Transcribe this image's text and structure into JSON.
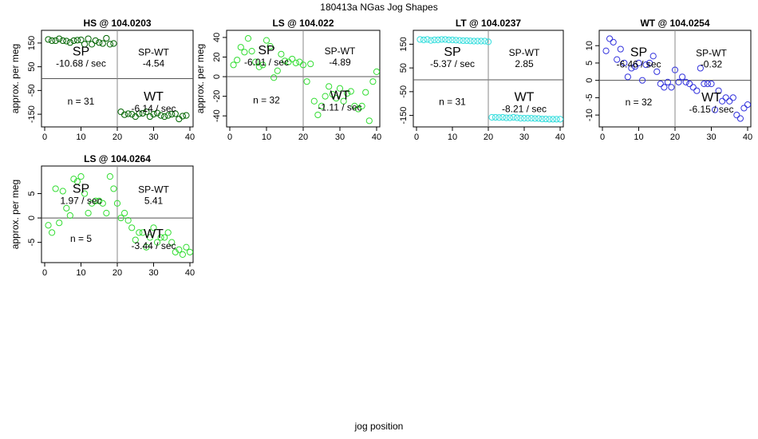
{
  "figure": {
    "title": "180413a   NGas Jog Shapes",
    "xlabel": "jog position"
  },
  "chart_data": [
    {
      "type": "scatter",
      "title": "HS @ 104.0203",
      "ylabel": "approx. per meg",
      "xlim": [
        0,
        40
      ],
      "ylim": [
        -190,
        190
      ],
      "xticks": [
        0,
        10,
        20,
        30,
        40
      ],
      "yticks": [
        -150,
        -50,
        50,
        150
      ],
      "color": "#006400",
      "split_x": 20,
      "annotations": {
        "sp": "SP",
        "sp_rate": "-10.68 / sec",
        "spwt": "SP-WT",
        "spwt_value": "-4.54",
        "n": "n = 31",
        "wt": "WT",
        "wt_rate": "-6.14 / sec"
      },
      "points": [
        [
          1,
          165
        ],
        [
          2,
          160
        ],
        [
          3,
          160
        ],
        [
          4,
          168
        ],
        [
          5,
          160
        ],
        [
          6,
          158
        ],
        [
          7,
          152
        ],
        [
          8,
          160
        ],
        [
          9,
          162
        ],
        [
          10,
          163
        ],
        [
          11,
          145
        ],
        [
          12,
          168
        ],
        [
          13,
          145
        ],
        [
          14,
          160
        ],
        [
          15,
          152
        ],
        [
          16,
          148
        ],
        [
          17,
          170
        ],
        [
          18,
          145
        ],
        [
          19,
          148
        ],
        [
          21,
          -140
        ],
        [
          22,
          -152
        ],
        [
          23,
          -148
        ],
        [
          24,
          -150
        ],
        [
          25,
          -160
        ],
        [
          26,
          -148
        ],
        [
          27,
          -146
        ],
        [
          28,
          -140
        ],
        [
          29,
          -160
        ],
        [
          30,
          -150
        ],
        [
          31,
          -145
        ],
        [
          32,
          -155
        ],
        [
          33,
          -160
        ],
        [
          34,
          -155
        ],
        [
          35,
          -150
        ],
        [
          36,
          -148
        ],
        [
          37,
          -170
        ],
        [
          38,
          -158
        ],
        [
          39,
          -155
        ]
      ]
    },
    {
      "type": "scatter",
      "title": "LS @ 104.022",
      "ylabel": "approx. per meg",
      "xlim": [
        0,
        40
      ],
      "ylim": [
        -48,
        44
      ],
      "xticks": [
        0,
        10,
        20,
        30,
        40
      ],
      "yticks": [
        -40,
        -20,
        0,
        20,
        40
      ],
      "color": "#33dd33",
      "split_x": 20,
      "annotations": {
        "sp": "SP",
        "sp_rate": "-6.01 / sec",
        "spwt": "SP-WT",
        "spwt_value": "-4.89",
        "n": "n = 32",
        "wt": "WT",
        "wt_rate": "-1.11 / sec"
      },
      "points": [
        [
          1,
          12
        ],
        [
          2,
          17
        ],
        [
          3,
          30
        ],
        [
          4,
          25
        ],
        [
          5,
          39
        ],
        [
          6,
          26
        ],
        [
          7,
          15
        ],
        [
          8,
          10
        ],
        [
          9,
          12
        ],
        [
          10,
          37
        ],
        [
          11,
          31
        ],
        [
          12,
          -1
        ],
        [
          13,
          6
        ],
        [
          14,
          23
        ],
        [
          15,
          16
        ],
        [
          16,
          15
        ],
        [
          17,
          18
        ],
        [
          18,
          14
        ],
        [
          19,
          15
        ],
        [
          20,
          12
        ],
        [
          21,
          -5
        ],
        [
          22,
          13
        ],
        [
          23,
          -25
        ],
        [
          24,
          -39
        ],
        [
          25,
          -30
        ],
        [
          26,
          -20
        ],
        [
          27,
          -10
        ],
        [
          28,
          -18
        ],
        [
          29,
          -22
        ],
        [
          30,
          -12
        ],
        [
          31,
          -25
        ],
        [
          32,
          -17
        ],
        [
          33,
          -15
        ],
        [
          34,
          -30
        ],
        [
          35,
          -33
        ],
        [
          36,
          -30
        ],
        [
          37,
          -16
        ],
        [
          38,
          -45
        ],
        [
          39,
          -5
        ],
        [
          40,
          5
        ]
      ]
    },
    {
      "type": "scatter",
      "title": "LT @ 104.0237",
      "ylabel": "",
      "xlim": [
        0,
        40
      ],
      "ylim": [
        -185,
        195
      ],
      "xticks": [
        0,
        10,
        20,
        30,
        40
      ],
      "yticks": [
        -150,
        -50,
        50,
        150
      ],
      "color": "#33dddd",
      "split_x": 20,
      "annotations": {
        "sp": "SP",
        "sp_rate": "-5.37 / sec",
        "spwt": "SP-WT",
        "spwt_value": "2.85",
        "n": "n = 31",
        "wt": "WT",
        "wt_rate": "-8.21 / sec"
      },
      "points": [
        [
          1,
          170
        ],
        [
          2,
          168
        ],
        [
          3,
          170
        ],
        [
          4,
          166
        ],
        [
          5,
          168
        ],
        [
          6,
          168
        ],
        [
          7,
          170
        ],
        [
          8,
          170
        ],
        [
          9,
          168
        ],
        [
          10,
          168
        ],
        [
          11,
          167
        ],
        [
          12,
          166
        ],
        [
          13,
          165
        ],
        [
          14,
          165
        ],
        [
          15,
          164
        ],
        [
          16,
          163
        ],
        [
          17,
          163
        ],
        [
          18,
          163
        ],
        [
          19,
          163
        ],
        [
          20,
          160
        ],
        [
          21,
          -158
        ],
        [
          22,
          -158
        ],
        [
          23,
          -159
        ],
        [
          24,
          -158
        ],
        [
          25,
          -160
        ],
        [
          26,
          -160
        ],
        [
          27,
          -158
        ],
        [
          28,
          -160
        ],
        [
          29,
          -162
        ],
        [
          30,
          -162
        ],
        [
          31,
          -162
        ],
        [
          32,
          -162
        ],
        [
          33,
          -163
        ],
        [
          34,
          -163
        ],
        [
          35,
          -165
        ],
        [
          36,
          -165
        ],
        [
          37,
          -166
        ],
        [
          38,
          -166
        ],
        [
          39,
          -166
        ],
        [
          40,
          -166
        ]
      ]
    },
    {
      "type": "scatter",
      "title": "WT @ 104.0254",
      "ylabel": "",
      "xlim": [
        0,
        40
      ],
      "ylim": [
        -12.5,
        13.5
      ],
      "xticks": [
        0,
        10,
        20,
        30,
        40
      ],
      "yticks": [
        -10,
        -5,
        0,
        5,
        10
      ],
      "color": "#3333dd",
      "split_x": 20,
      "annotations": {
        "sp": "SP",
        "sp_rate": "-6.46 / sec",
        "spwt": "SP-WT",
        "spwt_value": "-0.32",
        "n": "n = 32",
        "wt": "WT",
        "wt_rate": "-6.15 / sec"
      },
      "points": [
        [
          1,
          8.5
        ],
        [
          2,
          12
        ],
        [
          3,
          11
        ],
        [
          4,
          6
        ],
        [
          5,
          9
        ],
        [
          6,
          5
        ],
        [
          7,
          1
        ],
        [
          8,
          3.5
        ],
        [
          9,
          4
        ],
        [
          10,
          5
        ],
        [
          11,
          0
        ],
        [
          12,
          4.5
        ],
        [
          13,
          5
        ],
        [
          14,
          7
        ],
        [
          15,
          2.5
        ],
        [
          16,
          -1
        ],
        [
          17,
          -2
        ],
        [
          18,
          -0.5
        ],
        [
          19,
          -2
        ],
        [
          20,
          3
        ],
        [
          21,
          -0.5
        ],
        [
          22,
          1
        ],
        [
          23,
          -0.5
        ],
        [
          24,
          -1
        ],
        [
          25,
          -2
        ],
        [
          26,
          -3
        ],
        [
          27,
          3.5
        ],
        [
          28,
          -1
        ],
        [
          29,
          -1
        ],
        [
          30,
          -1
        ],
        [
          31,
          -8.5
        ],
        [
          32,
          -3
        ],
        [
          33,
          -6
        ],
        [
          34,
          -5
        ],
        [
          35,
          -6
        ],
        [
          36,
          -5
        ],
        [
          37,
          -10
        ],
        [
          38,
          -11
        ],
        [
          39,
          -8
        ],
        [
          40,
          -7
        ]
      ]
    },
    {
      "type": "scatter",
      "title": "LS @ 104.0264",
      "ylabel": "approx. per meg",
      "xlim": [
        0,
        40
      ],
      "ylim": [
        -8.5,
        10
      ],
      "xticks": [
        0,
        10,
        20,
        30,
        40
      ],
      "yticks": [
        -5,
        0,
        5
      ],
      "color": "#33dd33",
      "split_x": 20,
      "annotations": {
        "sp": "SP",
        "sp_rate": "1.97 / sec",
        "spwt": "SP-WT",
        "spwt_value": "5.41",
        "n": "n = 5",
        "wt": "WT",
        "wt_rate": "-3.44 / sec"
      },
      "points": [
        [
          1,
          -1.5
        ],
        [
          2,
          -3
        ],
        [
          3,
          6
        ],
        [
          4,
          -1
        ],
        [
          5,
          5.5
        ],
        [
          6,
          2
        ],
        [
          7,
          0.5
        ],
        [
          8,
          8
        ],
        [
          9,
          7.5
        ],
        [
          10,
          8.5
        ],
        [
          11,
          5
        ],
        [
          12,
          1
        ],
        [
          13,
          3
        ],
        [
          14,
          3.5
        ],
        [
          15,
          3.5
        ],
        [
          16,
          3
        ],
        [
          17,
          1
        ],
        [
          18,
          8.5
        ],
        [
          19,
          6
        ],
        [
          20,
          3
        ],
        [
          21,
          0
        ],
        [
          22,
          1
        ],
        [
          23,
          -0.5
        ],
        [
          24,
          -2
        ],
        [
          25,
          -4.5
        ],
        [
          26,
          -3
        ],
        [
          27,
          -3
        ],
        [
          28,
          -6
        ],
        [
          29,
          -4
        ],
        [
          30,
          -2
        ],
        [
          31,
          -5
        ],
        [
          32,
          -4
        ],
        [
          33,
          -4
        ],
        [
          34,
          -3
        ],
        [
          35,
          -5
        ],
        [
          36,
          -7
        ],
        [
          37,
          -6.5
        ],
        [
          38,
          -7.5
        ],
        [
          39,
          -6
        ],
        [
          40,
          -7
        ]
      ]
    }
  ]
}
